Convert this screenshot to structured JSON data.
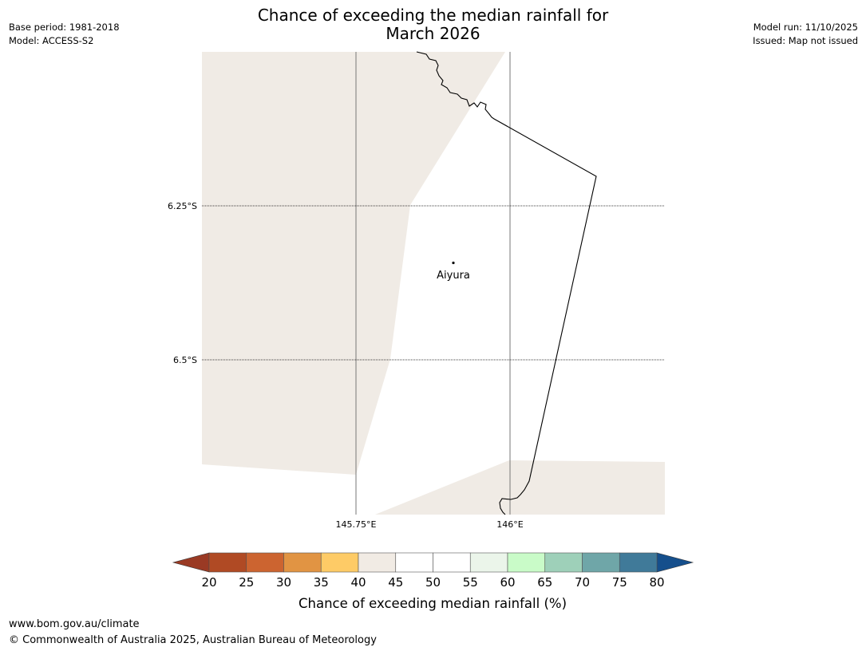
{
  "title_line1": "Chance of exceeding the median rainfall for",
  "title_line2": "March 2026",
  "meta_left": {
    "base_period": "Base period: 1981-2018",
    "model": "Model: ACCESS-S2"
  },
  "meta_right": {
    "model_run": "Model run: 11/10/2025",
    "issued": "Issued: Map not issued"
  },
  "map": {
    "lat_labels": [
      "6.25°S",
      "6.5°S"
    ],
    "lon_labels": [
      "145.75°E",
      "146°E"
    ],
    "location": {
      "name": "Aiyura"
    }
  },
  "colorbar": {
    "ticks": [
      "20",
      "25",
      "30",
      "35",
      "40",
      "45",
      "50",
      "55",
      "60",
      "65",
      "70",
      "75",
      "80"
    ],
    "label": "Chance of exceeding median rainfall (%)",
    "colors": [
      "#b04a24",
      "#cc6430",
      "#e19443",
      "#fecb66",
      "#f1ebe4",
      "#ffffff",
      "#ffffff",
      "#ebf5ea",
      "#c9fbc8",
      "#9ed0b9",
      "#6fa6a8",
      "#407a99"
    ],
    "under_color": "#9a3a24",
    "over_color": "#154f8c",
    "land_color": "#f0ebe5"
  },
  "footer": {
    "website": "www.bom.gov.au/climate",
    "copyright": "© Commonwealth of Australia 2025, Australian Bureau of Meteorology"
  }
}
